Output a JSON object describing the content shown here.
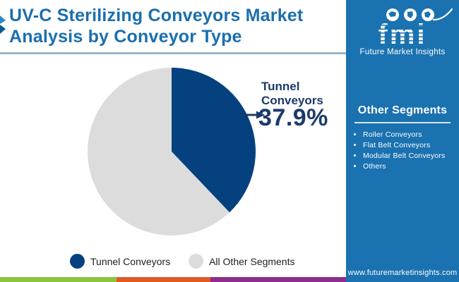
{
  "header": {
    "title": "UV-C Sterilizing Conveyors Market Analysis by Conveyor Type"
  },
  "brand": {
    "logo_text": "fmi",
    "logo_tagline": "Future Market Insights",
    "website": "www.futuremarketinsights.com"
  },
  "sidebar": {
    "heading": "Other Segments",
    "items": [
      "Roller Conveyors",
      "Flat Belt Conveyors",
      "Modular Belt Conveyors",
      "Others"
    ]
  },
  "callout": {
    "label": "Tunnel Conveyors",
    "value": "37.9%"
  },
  "legend": {
    "items": [
      {
        "label": "Tunnel Conveyors"
      },
      {
        "label": "All Other Segments"
      }
    ]
  },
  "chart_data": {
    "type": "pie",
    "title": "UV-C Sterilizing Conveyors Market Analysis by Conveyor Type",
    "slices": [
      {
        "label": "Tunnel Conveyors",
        "value": 37.9,
        "color": "#05417f"
      },
      {
        "label": "All Other Segments",
        "value": 62.1,
        "color": "#dcdcdc"
      }
    ],
    "start_angle_deg": 0,
    "direction": "clockwise",
    "legend_position": "bottom",
    "annotation": {
      "label": "Tunnel Conveyors",
      "value_text": "37.9%"
    }
  },
  "colors": {
    "title_blue": "#1a6fae",
    "sidebar_blue": "#1a72b0",
    "pie_blue": "#05417f",
    "pie_gray": "#dcdcdc",
    "callout_navy": "#1b3a6b",
    "strip_green": "#8bc53f",
    "strip_orange": "#e05a26",
    "strip_purple": "#8d2d8d"
  }
}
